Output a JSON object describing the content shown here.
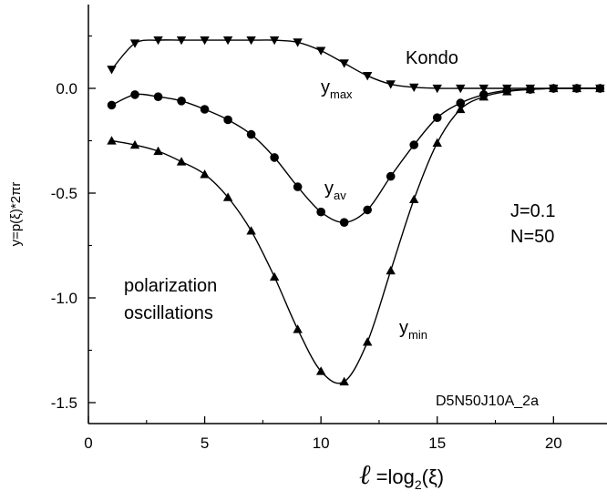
{
  "chart_data": {
    "type": "line",
    "title": "",
    "code_label": "D5N50J10A_2a",
    "xlabel": {
      "prefix": "ℓ",
      "main": " =log",
      "sub": "2",
      "suffix": "(ξ)"
    },
    "ylabel": "y=p(ξ)*2πr",
    "xlim": [
      0,
      22.3
    ],
    "ylim": [
      -1.6,
      0.4
    ],
    "x_ticks": [
      0,
      5,
      10,
      15,
      20
    ],
    "x_tick_labels": [
      "0",
      "5",
      "10",
      "15",
      "20"
    ],
    "y_ticks": [
      0.0,
      -0.5,
      -1.0,
      -1.5
    ],
    "y_tick_labels": [
      "0.0",
      "-0.5",
      "-1.0",
      "-1.5"
    ],
    "annotations": {
      "kondo": "Kondo",
      "ymax": {
        "base": "y",
        "sub": "max"
      },
      "yav": {
        "base": "y",
        "sub": "av"
      },
      "ymin": {
        "base": "y",
        "sub": "min"
      },
      "params_j": "J=0.1",
      "params_n": "N=50",
      "polarization": "polarization",
      "oscillations": "oscillations"
    },
    "series": [
      {
        "marker": "triangle-down",
        "x": [
          1,
          2,
          3,
          4,
          5,
          6,
          7,
          8,
          9,
          10,
          11,
          12,
          13,
          14,
          15,
          16,
          17,
          18,
          19,
          20,
          21,
          22
        ],
        "values": [
          0.09,
          0.215,
          0.23,
          0.23,
          0.23,
          0.23,
          0.23,
          0.23,
          0.22,
          0.18,
          0.12,
          0.06,
          0.02,
          0.005,
          0.0,
          0.0,
          0.0,
          0.0,
          0.0,
          0.0,
          0.0,
          0.0
        ]
      },
      {
        "marker": "circle",
        "x": [
          1,
          2,
          3,
          4,
          5,
          6,
          7,
          8,
          9,
          10,
          11,
          12,
          13,
          14,
          15,
          16,
          17,
          18,
          19,
          20,
          21,
          22
        ],
        "values": [
          -0.08,
          -0.03,
          -0.04,
          -0.06,
          -0.1,
          -0.15,
          -0.22,
          -0.33,
          -0.47,
          -0.59,
          -0.64,
          -0.58,
          -0.42,
          -0.27,
          -0.14,
          -0.07,
          -0.03,
          -0.01,
          -0.005,
          0.0,
          0.0,
          0.0
        ]
      },
      {
        "marker": "triangle-up",
        "x": [
          1,
          2,
          3,
          4,
          5,
          6,
          7,
          8,
          9,
          10,
          11,
          12,
          13,
          14,
          15,
          16,
          17,
          18,
          19,
          20,
          21,
          22
        ],
        "values": [
          -0.25,
          -0.27,
          -0.3,
          -0.35,
          -0.41,
          -0.52,
          -0.68,
          -0.9,
          -1.15,
          -1.35,
          -1.4,
          -1.21,
          -0.87,
          -0.53,
          -0.26,
          -0.1,
          -0.04,
          -0.015,
          -0.005,
          0.0,
          0.0,
          0.0
        ]
      }
    ]
  }
}
